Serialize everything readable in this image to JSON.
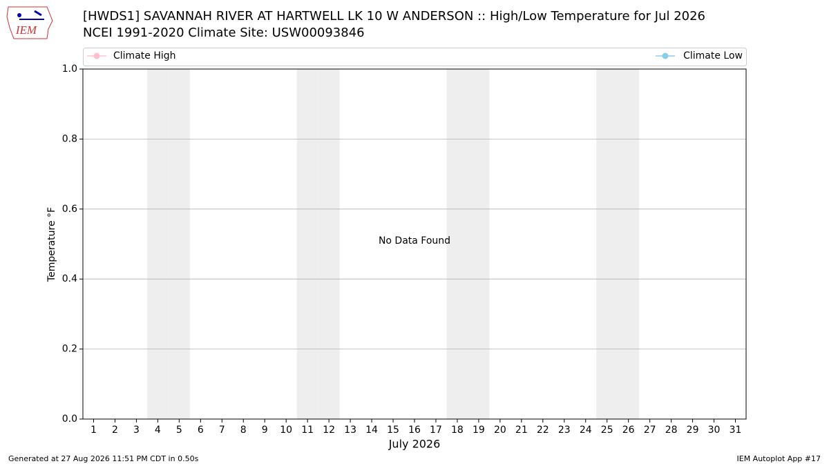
{
  "logo": "IEM",
  "chart_data": {
    "type": "line",
    "title": "[HWDS1] SAVANNAH RIVER  AT HARTWELL LK 10 W ANDERSON :: High/Low Temperature for Jul 2026",
    "subtitle": "NCEI 1991-2020 Climate Site: USW00093846",
    "x_label": "July 2026",
    "y_label": "Temperature °F",
    "annotation": "No Data Found",
    "x": [
      1,
      2,
      3,
      4,
      5,
      6,
      7,
      8,
      9,
      10,
      11,
      12,
      13,
      14,
      15,
      16,
      17,
      18,
      19,
      20,
      21,
      22,
      23,
      24,
      25,
      26,
      27,
      28,
      29,
      30,
      31
    ],
    "series": [
      {
        "name": "Climate High",
        "color": "#ffc0cb",
        "values": [
          null,
          null,
          null,
          null,
          null,
          null,
          null,
          null,
          null,
          null,
          null,
          null,
          null,
          null,
          null,
          null,
          null,
          null,
          null,
          null,
          null,
          null,
          null,
          null,
          null,
          null,
          null,
          null,
          null,
          null,
          null
        ]
      },
      {
        "name": "Climate Low",
        "color": "#87ceeb",
        "values": [
          null,
          null,
          null,
          null,
          null,
          null,
          null,
          null,
          null,
          null,
          null,
          null,
          null,
          null,
          null,
          null,
          null,
          null,
          null,
          null,
          null,
          null,
          null,
          null,
          null,
          null,
          null,
          null,
          null,
          null,
          null
        ]
      }
    ],
    "shaded_x": [
      4,
      5,
      11,
      12,
      18,
      19,
      25,
      26
    ],
    "shade_color": "#eeeeee",
    "xlim": [
      0.5,
      31.5
    ],
    "xticks": [
      1,
      2,
      3,
      4,
      5,
      6,
      7,
      8,
      9,
      10,
      11,
      12,
      13,
      14,
      15,
      16,
      17,
      18,
      19,
      20,
      21,
      22,
      23,
      24,
      25,
      26,
      27,
      28,
      29,
      30,
      31
    ],
    "ylim": [
      0,
      1
    ],
    "yticks": [
      {
        "value": 0,
        "label": "0.0"
      },
      {
        "value": 0.2,
        "label": "0.2"
      },
      {
        "value": 0.4,
        "label": "0.4"
      },
      {
        "value": 0.6,
        "label": "0.6"
      },
      {
        "value": 0.8,
        "label": "0.8"
      },
      {
        "value": 1,
        "label": "1.0"
      }
    ],
    "grid": true
  },
  "footer": {
    "left": "Generated at 27 Aug 2026 11:51 PM CDT in 0.50s",
    "right": "IEM Autoplot App #17"
  }
}
